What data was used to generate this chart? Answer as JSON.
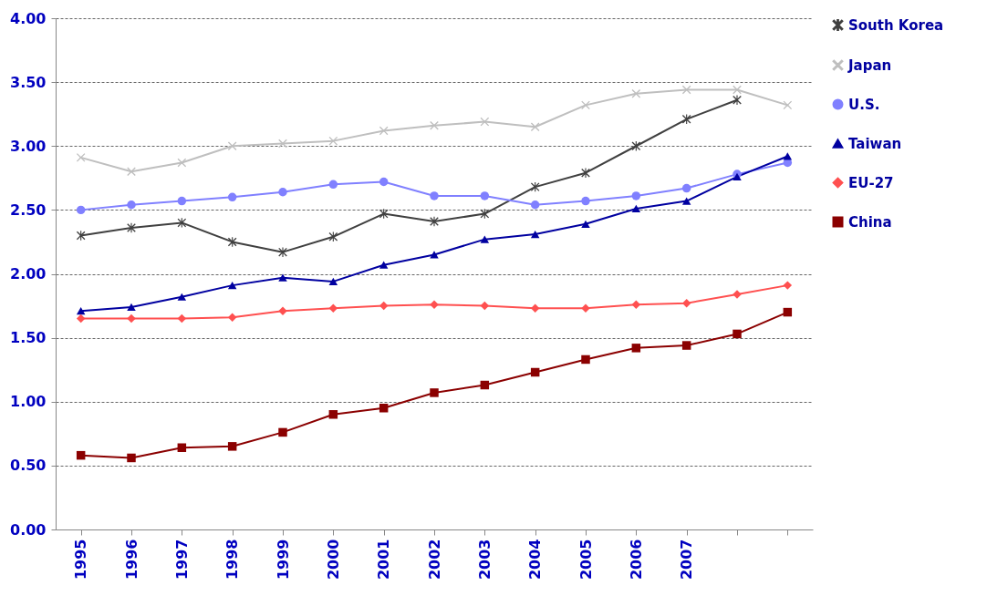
{
  "chart_data": {
    "type": "line",
    "categories": [
      "1995",
      "1996",
      "1997",
      "1998",
      "1999",
      "2000",
      "2001",
      "2002",
      "2003",
      "2004",
      "2005",
      "2006",
      "2007",
      null,
      null
    ],
    "series": [
      {
        "name": "South Korea",
        "color": "#404040",
        "marker": "star",
        "values": [
          2.3,
          2.36,
          2.4,
          2.25,
          2.17,
          2.29,
          2.47,
          2.41,
          2.47,
          2.68,
          2.79,
          3.0,
          3.21,
          3.36,
          null
        ]
      },
      {
        "name": "Japan",
        "color": "#bfbfbf",
        "marker": "cross",
        "values": [
          2.91,
          2.8,
          2.87,
          3.0,
          3.02,
          3.04,
          3.12,
          3.16,
          3.19,
          3.15,
          3.32,
          3.41,
          3.44,
          3.44,
          3.32
        ]
      },
      {
        "name": "U.S.",
        "color": "#8080ff",
        "marker": "circle",
        "values": [
          2.5,
          2.54,
          2.57,
          2.6,
          2.64,
          2.7,
          2.72,
          2.61,
          2.61,
          2.54,
          2.57,
          2.61,
          2.67,
          2.78,
          2.87
        ]
      },
      {
        "name": "Taiwan",
        "color": "#0000a0",
        "marker": "triangle",
        "values": [
          1.71,
          1.74,
          1.82,
          1.91,
          1.97,
          1.94,
          2.07,
          2.15,
          2.27,
          2.31,
          2.39,
          2.51,
          2.57,
          2.76,
          2.92
        ]
      },
      {
        "name": "EU-27",
        "color": "#ff5050",
        "marker": "diamond",
        "values": [
          1.65,
          1.65,
          1.65,
          1.66,
          1.71,
          1.73,
          1.75,
          1.76,
          1.75,
          1.73,
          1.73,
          1.76,
          1.77,
          1.84,
          1.91
        ]
      },
      {
        "name": "China",
        "color": "#8b0000",
        "marker": "square",
        "values": [
          0.58,
          0.56,
          0.64,
          0.65,
          0.76,
          0.9,
          0.95,
          1.07,
          1.13,
          1.23,
          1.33,
          1.42,
          1.44,
          1.53,
          1.7
        ]
      }
    ],
    "ylim": [
      0,
      4
    ],
    "yticks": [
      {
        "value": 0,
        "label": "0.00"
      },
      {
        "value": 0.5,
        "label": "0.50"
      },
      {
        "value": 1,
        "label": "1.00"
      },
      {
        "value": 1.5,
        "label": "1.50"
      },
      {
        "value": 2,
        "label": "2.00"
      },
      {
        "value": 2.5,
        "label": "2.50"
      },
      {
        "value": 3,
        "label": "3.00"
      },
      {
        "value": 3.5,
        "label": "3.50"
      },
      {
        "value": 4,
        "label": "4.00"
      }
    ],
    "grid": "y",
    "legend": "right",
    "line_style": "solid"
  }
}
